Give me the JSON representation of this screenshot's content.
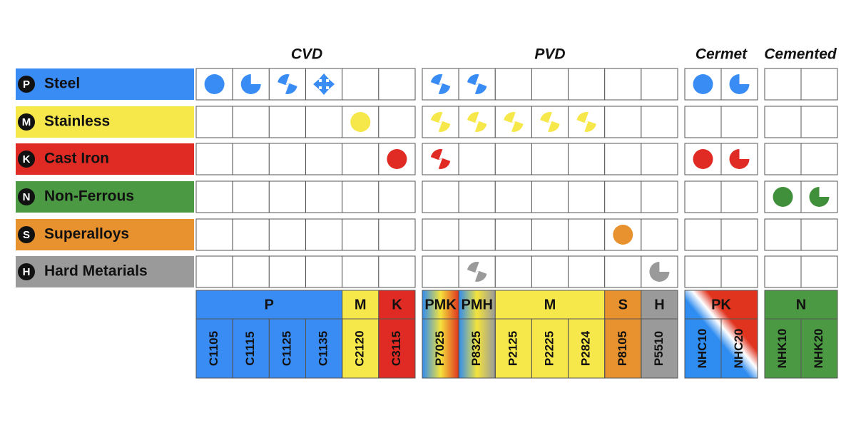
{
  "groups": [
    "CVD",
    "PVD",
    "Cermet",
    "Cemented"
  ],
  "materials": [
    {
      "letter": "P",
      "name": "Steel"
    },
    {
      "letter": "M",
      "name": "Stainless"
    },
    {
      "letter": "K",
      "name": "Cast Iron"
    },
    {
      "letter": "N",
      "name": "Non-Ferrous"
    },
    {
      "letter": "S",
      "name": "Superalloys"
    },
    {
      "letter": "H",
      "name": "Hard Metarials"
    }
  ],
  "families": [
    "P",
    "M",
    "K",
    "PMK",
    "PMH",
    "M",
    "S",
    "H",
    "PK",
    "N"
  ],
  "grades": [
    "C1105",
    "C1115",
    "C1125",
    "C1135",
    "C2120",
    "C3115",
    "P7025",
    "P8325",
    "P2125",
    "P2225",
    "P2824",
    "P8105",
    "P5510",
    "NHC10",
    "NHC20",
    "NHK10",
    "NHK20"
  ]
}
